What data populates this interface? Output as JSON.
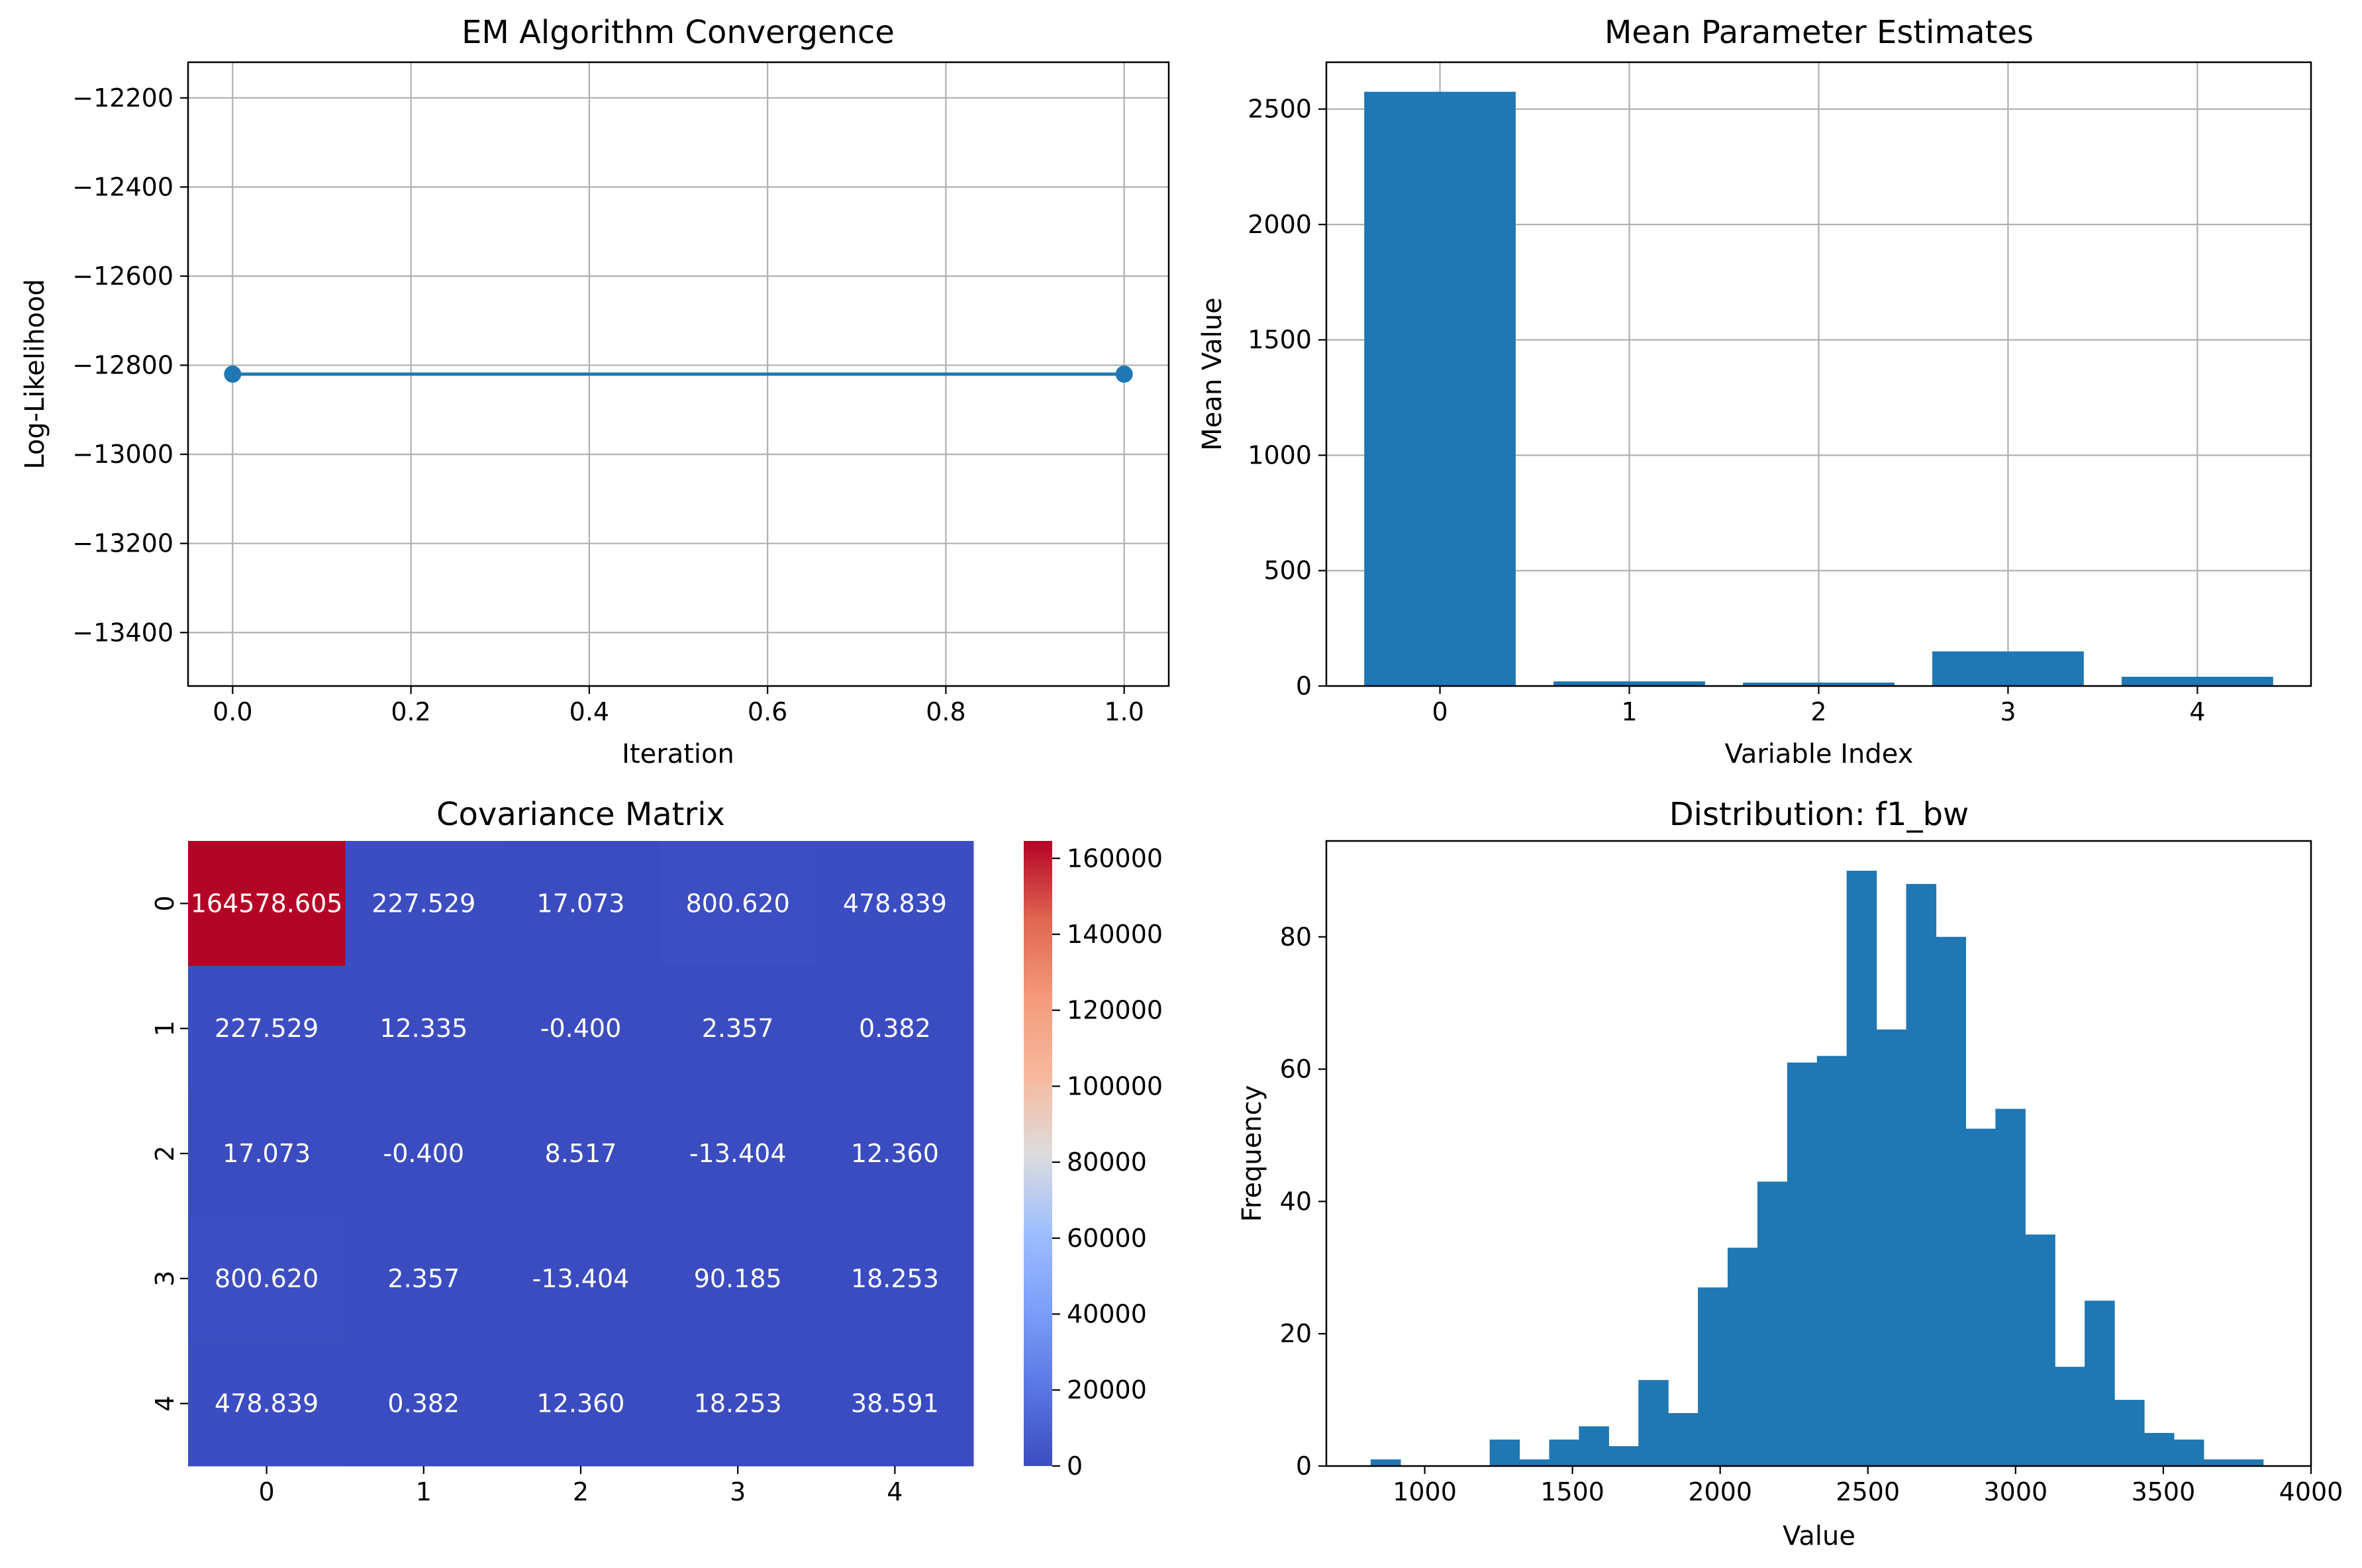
{
  "chart_data": [
    {
      "type": "line",
      "title": "EM Algorithm Convergence",
      "xlabel": "Iteration",
      "ylabel": "Log-Likelihood",
      "x": [
        0.0,
        1.0
      ],
      "series": [
        {
          "values": [
            -12820,
            -12820
          ]
        }
      ],
      "xlim": [
        -0.05,
        1.05
      ],
      "ylim": [
        -13520,
        -12120
      ],
      "xticks": [
        "0.0",
        "0.2",
        "0.4",
        "0.6",
        "0.8",
        "1.0"
      ],
      "xtick_values": [
        0,
        0.2,
        0.4,
        0.6,
        0.8,
        1.0
      ],
      "yticks": [
        "−12200",
        "−12400",
        "−12600",
        "−12800",
        "−13000",
        "−13200",
        "−13400"
      ],
      "ytick_values": [
        -12200,
        -12400,
        -12600,
        -12800,
        -13000,
        -13200,
        -13400
      ],
      "grid": true,
      "color": "#1f77b4"
    },
    {
      "type": "bar",
      "title": "Mean Parameter Estimates",
      "xlabel": "Variable Index",
      "ylabel": "Mean Value",
      "categories": [
        "0",
        "1",
        "2",
        "3",
        "4"
      ],
      "values": [
        2575,
        20,
        15,
        150,
        40
      ],
      "ylim": [
        0,
        2703
      ],
      "yticks": [
        "0",
        "500",
        "1000",
        "1500",
        "2000",
        "2500"
      ],
      "ytick_values": [
        0,
        500,
        1000,
        1500,
        2000,
        2500
      ],
      "grid": true,
      "color": "#1f77b4"
    },
    {
      "type": "heatmap",
      "title": "Covariance Matrix",
      "rows": [
        "0",
        "1",
        "2",
        "3",
        "4"
      ],
      "cols": [
        "0",
        "1",
        "2",
        "3",
        "4"
      ],
      "values": [
        [
          164578.605,
          227.529,
          17.073,
          800.62,
          478.839
        ],
        [
          227.529,
          12.335,
          -0.4,
          2.357,
          0.382
        ],
        [
          17.073,
          -0.4,
          8.517,
          -13.404,
          12.36
        ],
        [
          800.62,
          2.357,
          -13.404,
          90.185,
          18.253
        ],
        [
          478.839,
          0.382,
          12.36,
          18.253,
          38.591
        ]
      ],
      "annotations": [
        [
          "164578.605",
          "227.529",
          "17.073",
          "800.620",
          "478.839"
        ],
        [
          "227.529",
          "12.335",
          "-0.400",
          "2.357",
          "0.382"
        ],
        [
          "17.073",
          "-0.400",
          "8.517",
          "-13.404",
          "12.360"
        ],
        [
          "800.620",
          "2.357",
          "-13.404",
          "90.185",
          "18.253"
        ],
        [
          "478.839",
          "0.382",
          "12.360",
          "18.253",
          "38.591"
        ]
      ],
      "colormap": "coolwarm",
      "colorbar_range": [
        -13.404,
        164578.605
      ],
      "colorbar_ticks": [
        "0",
        "20000",
        "40000",
        "60000",
        "80000",
        "100000",
        "120000",
        "140000",
        "160000"
      ],
      "colorbar_tick_values": [
        0,
        20000,
        40000,
        60000,
        80000,
        100000,
        120000,
        140000,
        160000
      ]
    },
    {
      "type": "bar",
      "subtype": "histogram",
      "title": "Distribution: f1_bw",
      "xlabel": "Value",
      "ylabel": "Frequency",
      "bin_start": 817,
      "bin_width": 100.7,
      "counts": [
        1,
        0,
        0,
        0,
        4,
        1,
        4,
        6,
        3,
        13,
        8,
        27,
        33,
        43,
        61,
        62,
        90,
        66,
        88,
        80,
        51,
        54,
        35,
        15,
        25,
        10,
        5,
        4,
        1,
        1
      ],
      "xlim": [
        667,
        4000
      ],
      "ylim": [
        0,
        94.5
      ],
      "xticks": [
        "1000",
        "1500",
        "2000",
        "2500",
        "3000",
        "3500",
        "4000"
      ],
      "xtick_values": [
        1000,
        1500,
        2000,
        2500,
        3000,
        3500,
        4000
      ],
      "yticks": [
        "0",
        "20",
        "40",
        "60",
        "80"
      ],
      "ytick_values": [
        0,
        20,
        40,
        60,
        80
      ],
      "grid": false,
      "color": "#1f77b4"
    }
  ]
}
